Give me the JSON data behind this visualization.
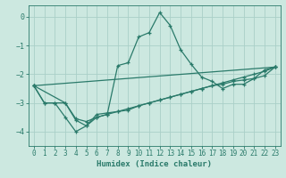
{
  "xlabel": "Humidex (Indice chaleur)",
  "background_color": "#cce8e0",
  "grid_color": "#aacfc8",
  "line_color": "#2a7a6a",
  "xlim": [
    -0.5,
    23.5
  ],
  "ylim": [
    -4.5,
    0.4
  ],
  "yticks": [
    0,
    -1,
    -2,
    -3,
    -4
  ],
  "xticks": [
    0,
    1,
    2,
    3,
    4,
    5,
    6,
    7,
    8,
    9,
    10,
    11,
    12,
    13,
    14,
    15,
    16,
    17,
    18,
    19,
    20,
    21,
    22,
    23
  ],
  "series": [
    {
      "x": [
        0,
        1,
        2,
        3,
        4,
        5,
        6,
        7,
        8,
        9,
        10,
        11,
        12,
        13,
        14,
        15,
        16,
        17,
        18,
        19,
        20,
        21,
        22,
        23
      ],
      "y": [
        -2.4,
        -3.0,
        -3.0,
        -3.5,
        -4.0,
        -3.8,
        -3.5,
        -3.4,
        -1.7,
        -1.6,
        -0.7,
        -0.55,
        0.15,
        -0.3,
        -1.15,
        -1.65,
        -2.1,
        -2.25,
        -2.5,
        -2.35,
        -2.35,
        -2.15,
        -1.85,
        -1.75
      ]
    },
    {
      "x": [
        0,
        23
      ],
      "y": [
        -2.4,
        -1.75
      ]
    },
    {
      "x": [
        0,
        1,
        2,
        3,
        4,
        5,
        6,
        7,
        8,
        9,
        10,
        11,
        12,
        13,
        14,
        15,
        16,
        17,
        18,
        19,
        20,
        21,
        22,
        23
      ],
      "y": [
        -2.4,
        -3.0,
        -3.0,
        -3.0,
        -3.55,
        -3.65,
        -3.5,
        -3.4,
        -3.3,
        -3.2,
        -3.1,
        -3.0,
        -2.9,
        -2.8,
        -2.7,
        -2.6,
        -2.5,
        -2.4,
        -2.3,
        -2.2,
        -2.1,
        -2.0,
        -1.9,
        -1.75
      ]
    },
    {
      "x": [
        0,
        3,
        4,
        5,
        6,
        7,
        8,
        9,
        10,
        11,
        12,
        13,
        14,
        15,
        16,
        17,
        18,
        19,
        20,
        21,
        22,
        23
      ],
      "y": [
        -2.4,
        -3.0,
        -3.6,
        -3.8,
        -3.4,
        -3.35,
        -3.3,
        -3.25,
        -3.1,
        -3.0,
        -2.9,
        -2.8,
        -2.7,
        -2.6,
        -2.5,
        -2.4,
        -2.35,
        -2.25,
        -2.2,
        -2.15,
        -2.05,
        -1.75
      ]
    }
  ]
}
